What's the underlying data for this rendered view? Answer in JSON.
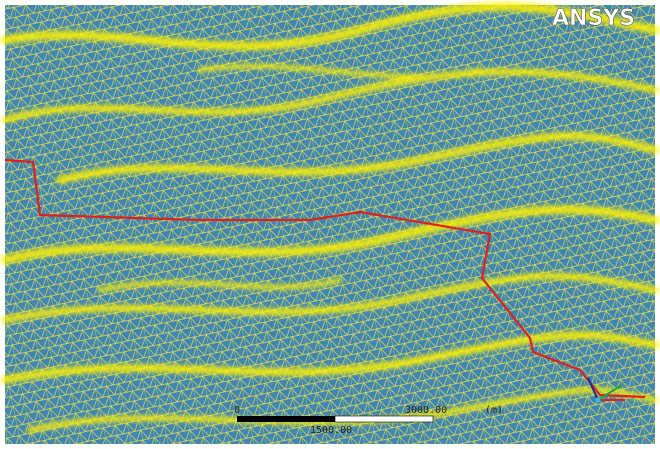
{
  "logo": "ANSYS",
  "scale_bar": {
    "start": "0",
    "end": "3000.00",
    "unit": "(m)",
    "mid": "1500.00"
  }
}
